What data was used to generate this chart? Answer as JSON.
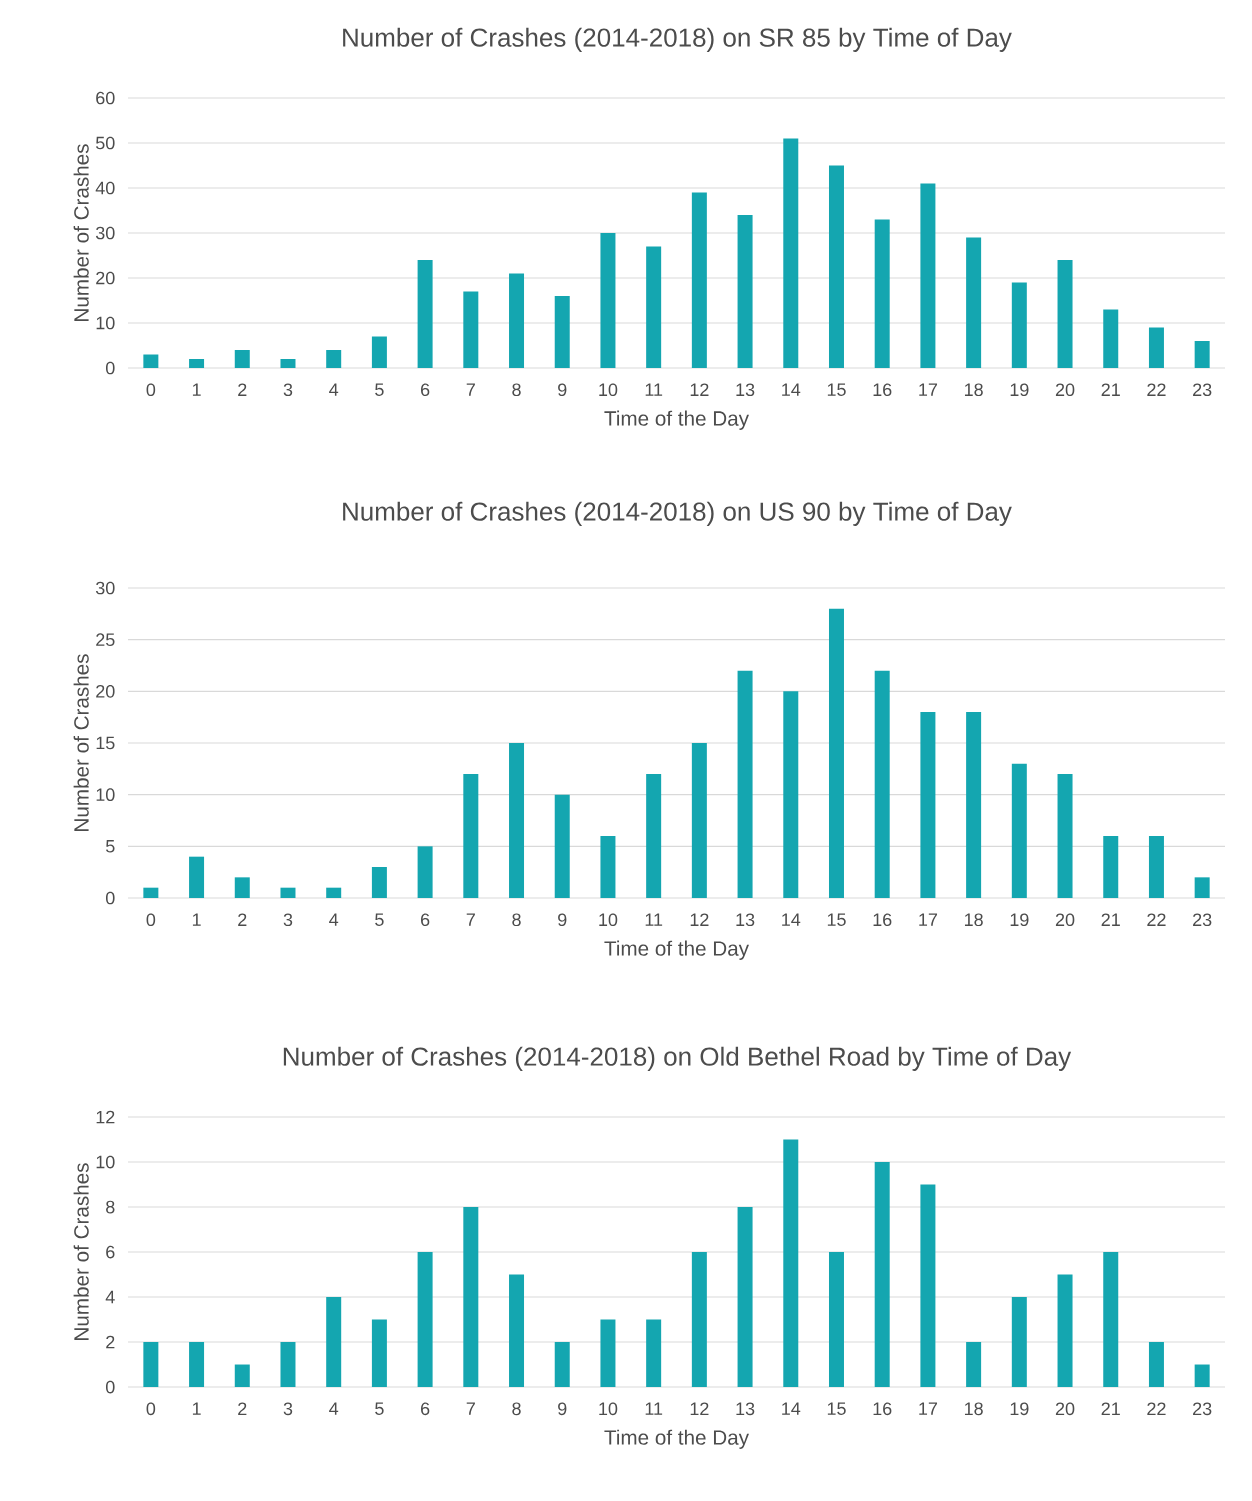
{
  "chart_data": [
    {
      "type": "bar",
      "title": "Number of Crashes (2014-2018)  on SR 85  by Time of Day",
      "xlabel": "Time of the Day",
      "ylabel": "Number of Crashes",
      "categories": [
        "0",
        "1",
        "2",
        "3",
        "4",
        "5",
        "6",
        "7",
        "8",
        "9",
        "10",
        "11",
        "12",
        "13",
        "14",
        "15",
        "16",
        "17",
        "18",
        "19",
        "20",
        "21",
        "22",
        "23"
      ],
      "values": [
        3,
        2,
        4,
        2,
        4,
        7,
        24,
        17,
        21,
        16,
        30,
        27,
        39,
        34,
        51,
        45,
        33,
        41,
        29,
        19,
        24,
        13,
        9,
        6
      ],
      "color": "#14a6b0",
      "ylim": [
        0,
        60
      ],
      "yticks": [
        0,
        10,
        20,
        30,
        40,
        50,
        60
      ],
      "grid": "y"
    },
    {
      "type": "bar",
      "title": "Number of Crashes (2014-2018)  on US 90  by Time of Day",
      "xlabel": "Time of the Day",
      "ylabel": "Number of Crashes",
      "categories": [
        "0",
        "1",
        "2",
        "3",
        "4",
        "5",
        "6",
        "7",
        "8",
        "9",
        "10",
        "11",
        "12",
        "13",
        "14",
        "15",
        "16",
        "17",
        "18",
        "19",
        "20",
        "21",
        "22",
        "23"
      ],
      "values": [
        1,
        4,
        2,
        1,
        1,
        3,
        5,
        12,
        15,
        10,
        6,
        12,
        15,
        22,
        20,
        28,
        22,
        18,
        18,
        13,
        12,
        6,
        6,
        2
      ],
      "color": "#14a6b0",
      "ylim": [
        0,
        30
      ],
      "yticks": [
        0,
        5,
        10,
        15,
        20,
        25,
        30
      ],
      "grid": "y"
    },
    {
      "type": "bar",
      "title": "Number of Crashes (2014-2018)  on Old Bethel Road by Time of Day",
      "xlabel": "Time of the Day",
      "ylabel": "Number of Crashes",
      "categories": [
        "0",
        "1",
        "2",
        "3",
        "4",
        "5",
        "6",
        "7",
        "8",
        "9",
        "10",
        "11",
        "12",
        "13",
        "14",
        "15",
        "16",
        "17",
        "18",
        "19",
        "20",
        "21",
        "22",
        "23"
      ],
      "values": [
        2,
        2,
        1,
        2,
        4,
        3,
        6,
        8,
        5,
        2,
        3,
        3,
        6,
        8,
        11,
        6,
        10,
        9,
        2,
        4,
        5,
        6,
        2,
        1
      ],
      "color": "#14a6b0",
      "ylim": [
        0,
        12
      ],
      "yticks": [
        0,
        2,
        4,
        6,
        8,
        10,
        12
      ],
      "grid": "y"
    }
  ]
}
